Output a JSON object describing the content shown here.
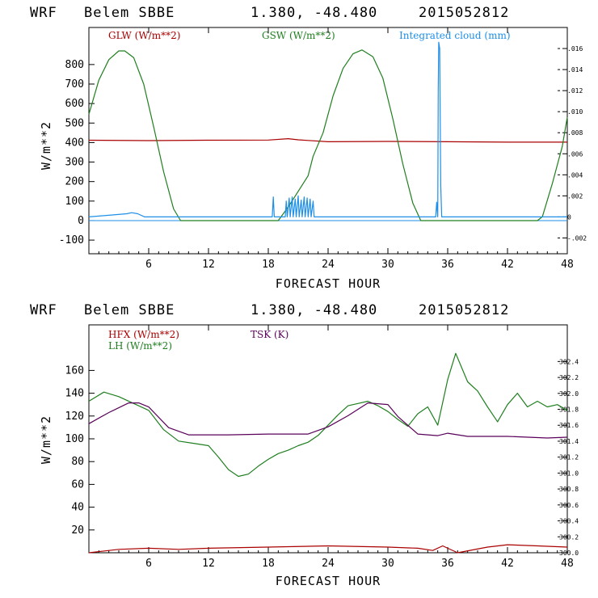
{
  "header1": {
    "model": "WRF",
    "site": "Belem SBBE",
    "coords": "1.380, -48.480",
    "date": "2015052812"
  },
  "header2": {
    "model": "WRF",
    "site": "Belem SBBE",
    "coords": "1.380, -48.480",
    "date": "2015052812"
  },
  "colors": {
    "red": "#aa0000",
    "green": "#1f7f1f",
    "blue": "#1e8fe8",
    "purple": "#5a005a"
  },
  "chart_data": [
    {
      "type": "line",
      "xlabel": "FORECAST HOUR",
      "ylabel": "W/m**2",
      "xlim": [
        0,
        48
      ],
      "ylim": [
        -170,
        990
      ],
      "y2lim": [
        -0.0035,
        0.018
      ],
      "xticks": [
        6,
        12,
        18,
        24,
        30,
        36,
        42,
        48
      ],
      "yticks": [
        -100,
        0,
        100,
        200,
        300,
        400,
        500,
        600,
        700,
        800
      ],
      "y2ticks": [
        -0.002,
        0,
        0.002,
        0.004,
        0.006,
        0.008,
        0.01,
        0.012,
        0.014,
        0.016
      ],
      "y2ticklabels": [
        "-.002",
        "0",
        ".002",
        ".004",
        ".006",
        ".008",
        ".010",
        ".012",
        ".014",
        ".016"
      ],
      "legend_labels": {
        "glw": "GLW (W/m**2)",
        "gsw": "GSW (W/m**2)",
        "cloud": "Integrated cloud (mm)"
      },
      "series": [
        {
          "name": "GLW (W/m**2)",
          "color": "#aa0000",
          "axis": "left",
          "x": [
            0,
            6,
            12,
            18,
            20,
            21,
            22,
            24,
            30,
            36,
            42,
            48
          ],
          "y": [
            412,
            410,
            412,
            413,
            420,
            414,
            411,
            404,
            406,
            404,
            402,
            402
          ]
        },
        {
          "name": "GSW (W/m**2)",
          "color": "#1f7f1f",
          "axis": "left",
          "x": [
            0,
            1,
            2,
            3,
            3.6,
            4.5,
            5.5,
            6.5,
            7.5,
            8.5,
            9.2,
            18,
            19,
            20,
            21,
            22,
            22.5,
            23.5,
            24.5,
            25.5,
            26.5,
            27.4,
            28.5,
            29.5,
            30.5,
            31.5,
            32.5,
            33.3,
            45,
            45.5,
            46.5,
            47.5,
            48
          ],
          "y": [
            545,
            720,
            825,
            870,
            870,
            835,
            700,
            480,
            250,
            60,
            0,
            0,
            0,
            70,
            150,
            230,
            330,
            450,
            640,
            780,
            855,
            875,
            840,
            730,
            520,
            290,
            90,
            0,
            0,
            20,
            190,
            380,
            530
          ]
        },
        {
          "name": "Integrated cloud (mm)",
          "color": "#1e8fe8",
          "axis": "right",
          "x": [
            0,
            3.8,
            4.3,
            4.9,
            5.6,
            18,
            18.4,
            18.5,
            18.6,
            19.7,
            19.8,
            19.9,
            20.1,
            20.2,
            20.4,
            20.5,
            20.7,
            20.8,
            21.0,
            21.1,
            21.3,
            21.4,
            21.6,
            21.7,
            21.9,
            22.0,
            22.2,
            22.3,
            22.5,
            22.6,
            34.8,
            34.9,
            35.0,
            35.05,
            35.1,
            35.2,
            35.3,
            35.4,
            48
          ],
          "y": [
            0,
            0.0003,
            0.0004,
            0.0003,
            0,
            0,
            0,
            0.0019,
            0,
            0,
            0.0015,
            0,
            0.0018,
            0,
            0.0019,
            0,
            0.0017,
            0,
            0.002,
            0,
            0.0016,
            0,
            0.0019,
            0,
            0.0018,
            0,
            0.0017,
            0,
            0.0015,
            0,
            0,
            0.0014,
            0,
            0.012,
            0.0166,
            0.016,
            0.003,
            0,
            0
          ]
        }
      ]
    },
    {
      "type": "line",
      "xlabel": "FORECAST HOUR",
      "ylabel": "W/m**2",
      "xlim": [
        0,
        48
      ],
      "ylim": [
        0,
        200
      ],
      "y2lim": [
        300.0,
        302.86
      ],
      "xticks": [
        6,
        12,
        18,
        24,
        30,
        36,
        42,
        48
      ],
      "yticks": [
        20,
        40,
        60,
        80,
        100,
        120,
        140,
        160
      ],
      "y2ticks": [
        300.0,
        300.2,
        300.4,
        300.6,
        300.8,
        301.0,
        301.2,
        301.4,
        301.6,
        301.8,
        302.0,
        302.2,
        302.4
      ],
      "y2ticklabels": [
        "300.0",
        "300.2",
        "300.4",
        "300.6",
        "300.8",
        "301.0",
        "301.2",
        "301.4",
        "301.6",
        "301.8",
        "302.0",
        "302.2",
        "302.4"
      ],
      "legend_labels": {
        "hfx": "HFX (W/m**2)",
        "lh": "LH  (W/m**2)",
        "tsk": "TSK (K)"
      },
      "series": [
        {
          "name": "HFX (W/m**2)",
          "color": "#aa0000",
          "axis": "left",
          "x": [
            0,
            3,
            6,
            9,
            12,
            18,
            24,
            30,
            33,
            34.5,
            35.5,
            37,
            40,
            42,
            45,
            48
          ],
          "y": [
            0,
            3,
            4,
            3,
            4,
            5,
            6,
            5,
            4,
            2,
            6,
            0,
            5,
            7,
            6,
            5
          ]
        },
        {
          "name": "LH  (W/m**2)",
          "color": "#1f7f1f",
          "axis": "left",
          "x": [
            0,
            1.5,
            3,
            4.5,
            6,
            7.5,
            9,
            10.5,
            12,
            13,
            14,
            15,
            16,
            17,
            18,
            19,
            20,
            21,
            22,
            23,
            24,
            25,
            26,
            27,
            28,
            29,
            30,
            31,
            32,
            33,
            34,
            35,
            36,
            36.8,
            38,
            39,
            40,
            41,
            42,
            43,
            44,
            45,
            46,
            47,
            48
          ],
          "y": [
            133,
            141,
            137,
            131,
            125,
            108,
            98,
            96,
            94,
            84,
            73,
            67,
            69,
            76,
            82,
            87,
            90,
            94,
            97,
            103,
            112,
            121,
            129,
            131,
            133,
            129,
            124,
            117,
            111,
            122,
            128,
            112,
            152,
            175,
            150,
            142,
            128,
            115,
            130,
            140,
            128,
            133,
            128,
            130,
            125
          ]
        },
        {
          "name": "TSK (K)",
          "color": "#5a005a",
          "axis": "right",
          "x": [
            0,
            2,
            4,
            5,
            6,
            8,
            10,
            14,
            18,
            22,
            24,
            26,
            28,
            30,
            31,
            33,
            35,
            36,
            38,
            42,
            46,
            48
          ],
          "y": [
            301.62,
            301.76,
            301.88,
            301.88,
            301.83,
            301.57,
            301.48,
            301.48,
            301.49,
            301.49,
            301.58,
            301.72,
            301.88,
            301.86,
            301.71,
            301.49,
            301.47,
            301.5,
            301.46,
            301.46,
            301.44,
            301.45
          ]
        }
      ]
    }
  ]
}
